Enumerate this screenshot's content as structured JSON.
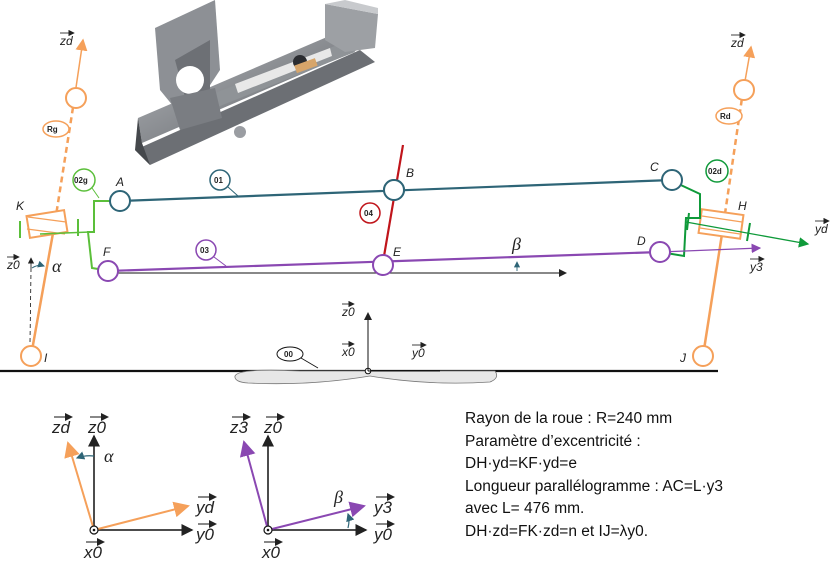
{
  "points": {
    "A": "A",
    "B": "B",
    "C": "C",
    "D": "D",
    "E": "E",
    "F": "F",
    "H": "H",
    "I": "I",
    "J": "J",
    "K": "K"
  },
  "tags": {
    "t00": "00",
    "t01": "01",
    "t02g": "02g",
    "t02d": "02d",
    "t03": "03",
    "t04": "04",
    "Rg": "Rg",
    "Rd": "Rd"
  },
  "axes": {
    "z_d": "zd",
    "z_0": "z0",
    "y_d": "yd",
    "y_3": "y3",
    "y_0": "y0",
    "x_0": "x0",
    "z_3": "z3",
    "alpha": "α",
    "beta": "β"
  },
  "params": {
    "line1": "Rayon de la roue : R=240 mm",
    "line2": "Paramètre d’excentricité :",
    "line3": "DH·yd=KF·yd=e",
    "line4": "Longueur parallélogramme : AC=L·y3",
    "line5": "avec L= 476 mm.",
    "line6": "DH·zd=FK·zd=n et IJ=λy0."
  },
  "colors": {
    "orange": "#f5a05a",
    "teal": "#2e6577",
    "purple": "#8a48b2",
    "red": "#c0151b",
    "green": "#5bbf3a",
    "dark_green": "#0f9a3a"
  }
}
